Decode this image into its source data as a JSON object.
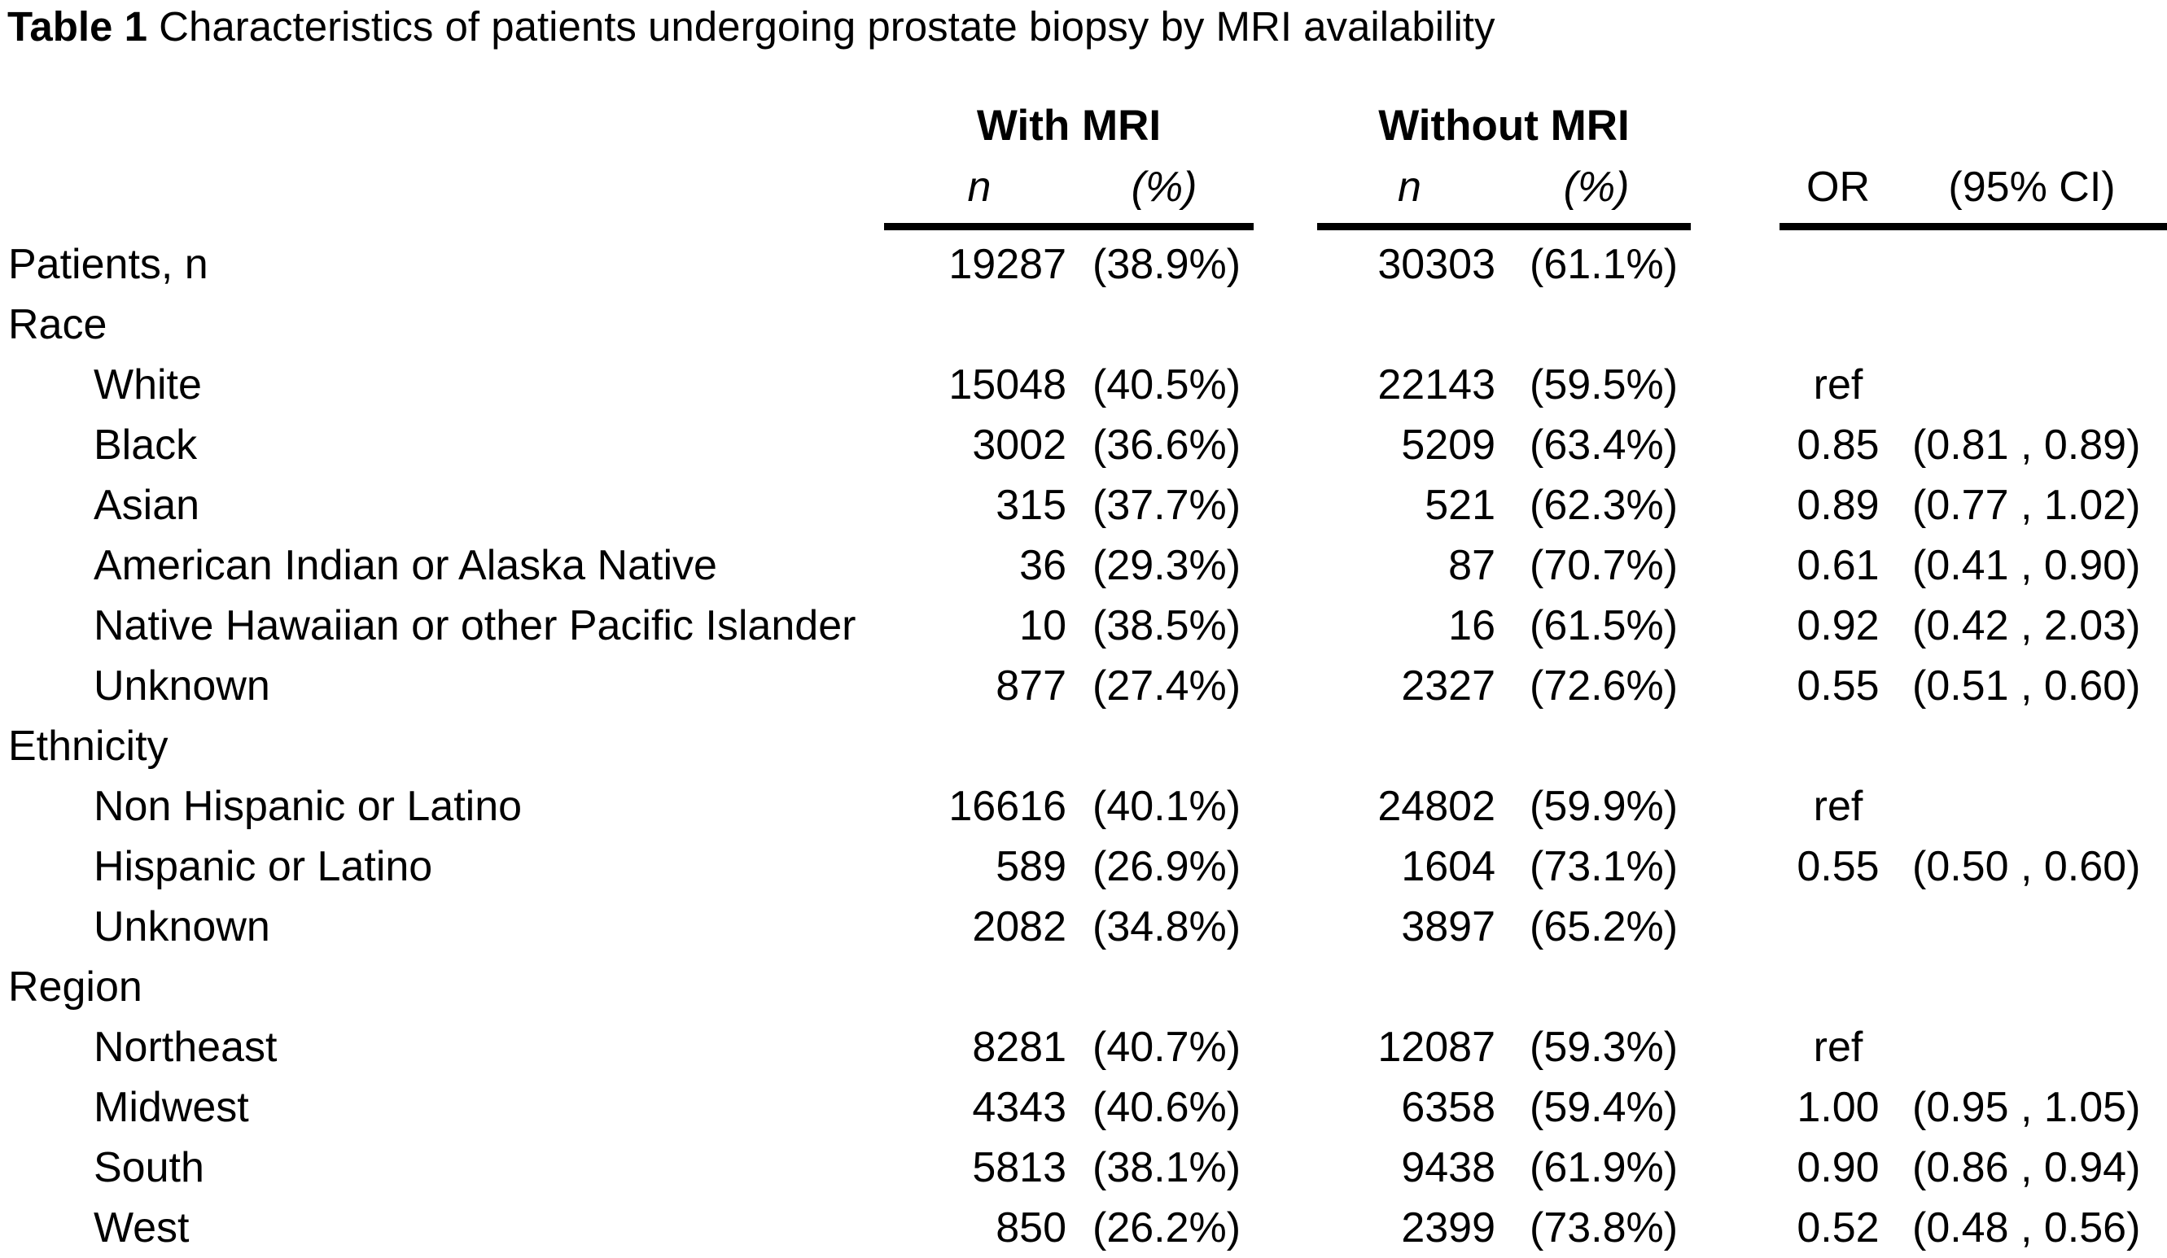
{
  "title": {
    "label": "Table 1",
    "text": "Characteristics of patients undergoing prostate biopsy by MRI availability"
  },
  "table": {
    "group_headers": [
      "With MRI",
      "Without MRI"
    ],
    "sub_headers": {
      "n1": "n",
      "pct1": "(%)",
      "n2": "n",
      "pct2": "(%)",
      "or": "OR",
      "ci": "(95% CI)"
    },
    "rows": [
      {
        "label": "Patients, n",
        "indent": false,
        "n1": "19287",
        "pct1": "(38.9%)",
        "n2": "30303",
        "pct2": "(61.1%)",
        "or": "",
        "ci": ""
      },
      {
        "label": "Race",
        "indent": false,
        "n1": "",
        "pct1": "",
        "n2": "",
        "pct2": "",
        "or": "",
        "ci": ""
      },
      {
        "label": "White",
        "indent": true,
        "n1": "15048",
        "pct1": "(40.5%)",
        "n2": "22143",
        "pct2": "(59.5%)",
        "or": "ref",
        "ci": ""
      },
      {
        "label": "Black",
        "indent": true,
        "n1": "3002",
        "pct1": "(36.6%)",
        "n2": "5209",
        "pct2": "(63.4%)",
        "or": "0.85",
        "ci": "(0.81 , 0.89)"
      },
      {
        "label": "Asian",
        "indent": true,
        "n1": "315",
        "pct1": "(37.7%)",
        "n2": "521",
        "pct2": "(62.3%)",
        "or": "0.89",
        "ci": "(0.77 , 1.02)"
      },
      {
        "label": "American Indian or Alaska Native",
        "indent": true,
        "n1": "36",
        "pct1": "(29.3%)",
        "n2": "87",
        "pct2": "(70.7%)",
        "or": "0.61",
        "ci": "(0.41 , 0.90)"
      },
      {
        "label": "Native Hawaiian or other Pacific Islander",
        "indent": true,
        "n1": "10",
        "pct1": "(38.5%)",
        "n2": "16",
        "pct2": "(61.5%)",
        "or": "0.92",
        "ci": "(0.42 , 2.03)"
      },
      {
        "label": "Unknown",
        "indent": true,
        "n1": "877",
        "pct1": "(27.4%)",
        "n2": "2327",
        "pct2": "(72.6%)",
        "or": "0.55",
        "ci": "(0.51 , 0.60)"
      },
      {
        "label": "Ethnicity",
        "indent": false,
        "n1": "",
        "pct1": "",
        "n2": "",
        "pct2": "",
        "or": "",
        "ci": ""
      },
      {
        "label": "Non Hispanic or Latino",
        "indent": true,
        "n1": "16616",
        "pct1": "(40.1%)",
        "n2": "24802",
        "pct2": "(59.9%)",
        "or": "ref",
        "ci": ""
      },
      {
        "label": "Hispanic or Latino",
        "indent": true,
        "n1": "589",
        "pct1": "(26.9%)",
        "n2": "1604",
        "pct2": "(73.1%)",
        "or": "0.55",
        "ci": "(0.50 , 0.60)"
      },
      {
        "label": "Unknown",
        "indent": true,
        "n1": "2082",
        "pct1": "(34.8%)",
        "n2": "3897",
        "pct2": "(65.2%)",
        "or": "",
        "ci": ""
      },
      {
        "label": "Region",
        "indent": false,
        "n1": "",
        "pct1": "",
        "n2": "",
        "pct2": "",
        "or": "",
        "ci": ""
      },
      {
        "label": "Northeast",
        "indent": true,
        "n1": "8281",
        "pct1": "(40.7%)",
        "n2": "12087",
        "pct2": "(59.3%)",
        "or": "ref",
        "ci": ""
      },
      {
        "label": "Midwest",
        "indent": true,
        "n1": "4343",
        "pct1": "(40.6%)",
        "n2": "6358",
        "pct2": "(59.4%)",
        "or": "1.00",
        "ci": "(0.95 , 1.05)"
      },
      {
        "label": "South",
        "indent": true,
        "n1": "5813",
        "pct1": "(38.1%)",
        "n2": "9438",
        "pct2": "(61.9%)",
        "or": "0.90",
        "ci": "(0.86 , 0.94)"
      },
      {
        "label": "West",
        "indent": true,
        "n1": "850",
        "pct1": "(26.2%)",
        "n2": "2399",
        "pct2": "(73.8%)",
        "or": "0.52",
        "ci": "(0.48 , 0.56)"
      }
    ]
  }
}
